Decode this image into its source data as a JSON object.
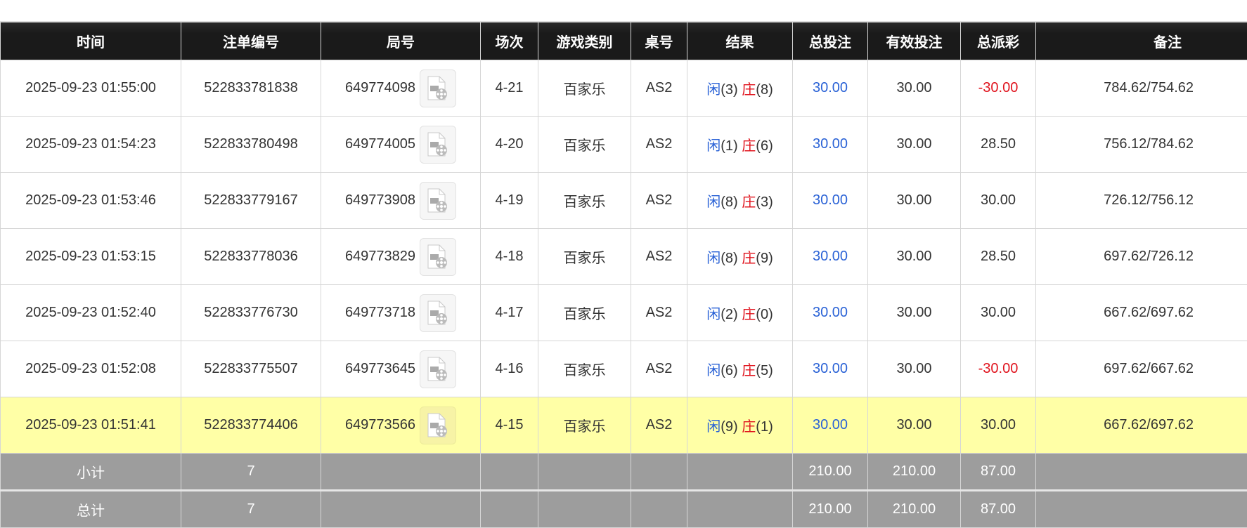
{
  "headers": [
    "时间",
    "注单编号",
    "局号",
    "场次",
    "游戏类别",
    "桌号",
    "结果",
    "总投注",
    "有效投注",
    "总派彩",
    "备注"
  ],
  "colors": {
    "header_bg": "#1a1a1a",
    "player": "#2a62d6",
    "banker": "#e0141e",
    "highlight_row": "#ffffa6",
    "footer_bg": "#9d9d9d"
  },
  "rows": [
    {
      "time": "2025-09-23 01:55:00",
      "bet_id": "522833781838",
      "round": "649774098",
      "icon": "video-replay-icon",
      "shoe": "4-21",
      "game": "百家乐",
      "table": "AS2",
      "player_label": "闲",
      "player_score": "(3)",
      "banker_label": "庄",
      "banker_score": "(8)",
      "total_bet": "30.00",
      "valid_bet": "30.00",
      "payout": "-30.00",
      "payout_negative": true,
      "remark": "784.62/754.62",
      "highlighted": false
    },
    {
      "time": "2025-09-23 01:54:23",
      "bet_id": "522833780498",
      "round": "649774005",
      "icon": "video-replay-icon",
      "shoe": "4-20",
      "game": "百家乐",
      "table": "AS2",
      "player_label": "闲",
      "player_score": "(1)",
      "banker_label": "庄",
      "banker_score": "(6)",
      "total_bet": "30.00",
      "valid_bet": "30.00",
      "payout": "28.50",
      "payout_negative": false,
      "remark": "756.12/784.62",
      "highlighted": false
    },
    {
      "time": "2025-09-23 01:53:46",
      "bet_id": "522833779167",
      "round": "649773908",
      "icon": "video-replay-icon",
      "shoe": "4-19",
      "game": "百家乐",
      "table": "AS2",
      "player_label": "闲",
      "player_score": "(8)",
      "banker_label": "庄",
      "banker_score": "(3)",
      "total_bet": "30.00",
      "valid_bet": "30.00",
      "payout": "30.00",
      "payout_negative": false,
      "remark": "726.12/756.12",
      "highlighted": false
    },
    {
      "time": "2025-09-23 01:53:15",
      "bet_id": "522833778036",
      "round": "649773829",
      "icon": "video-replay-icon",
      "shoe": "4-18",
      "game": "百家乐",
      "table": "AS2",
      "player_label": "闲",
      "player_score": "(8)",
      "banker_label": "庄",
      "banker_score": "(9)",
      "total_bet": "30.00",
      "valid_bet": "30.00",
      "payout": "28.50",
      "payout_negative": false,
      "remark": "697.62/726.12",
      "highlighted": false
    },
    {
      "time": "2025-09-23 01:52:40",
      "bet_id": "522833776730",
      "round": "649773718",
      "icon": "video-replay-icon",
      "shoe": "4-17",
      "game": "百家乐",
      "table": "AS2",
      "player_label": "闲",
      "player_score": "(2)",
      "banker_label": "庄",
      "banker_score": "(0)",
      "total_bet": "30.00",
      "valid_bet": "30.00",
      "payout": "30.00",
      "payout_negative": false,
      "remark": "667.62/697.62",
      "highlighted": false
    },
    {
      "time": "2025-09-23 01:52:08",
      "bet_id": "522833775507",
      "round": "649773645",
      "icon": "video-replay-icon",
      "shoe": "4-16",
      "game": "百家乐",
      "table": "AS2",
      "player_label": "闲",
      "player_score": "(6)",
      "banker_label": "庄",
      "banker_score": "(5)",
      "total_bet": "30.00",
      "valid_bet": "30.00",
      "payout": "-30.00",
      "payout_negative": true,
      "remark": "697.62/667.62",
      "highlighted": false
    },
    {
      "time": "2025-09-23 01:51:41",
      "bet_id": "522833774406",
      "round": "649773566",
      "icon": "video-replay-icon",
      "shoe": "4-15",
      "game": "百家乐",
      "table": "AS2",
      "player_label": "闲",
      "player_score": "(9)",
      "banker_label": "庄",
      "banker_score": "(1)",
      "total_bet": "30.00",
      "valid_bet": "30.00",
      "payout": "30.00",
      "payout_negative": false,
      "remark": "667.62/697.62",
      "highlighted": true
    }
  ],
  "subtotal": {
    "label": "小计",
    "count": "7",
    "total_bet": "210.00",
    "valid_bet": "210.00",
    "payout": "87.00"
  },
  "total": {
    "label": "总计",
    "count": "7",
    "total_bet": "210.00",
    "valid_bet": "210.00",
    "payout": "87.00"
  }
}
